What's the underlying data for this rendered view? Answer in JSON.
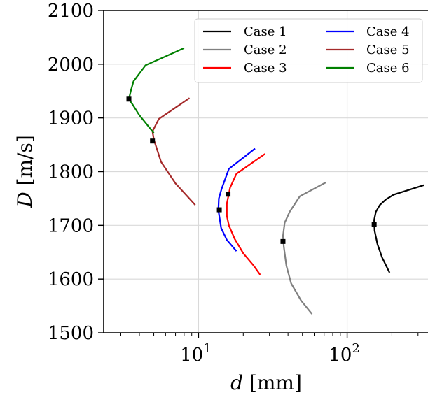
{
  "chart_data": {
    "type": "line",
    "xscale": "log",
    "xlabel_var": "d",
    "xlabel_unit": "[mm]",
    "ylabel_var": "D",
    "ylabel_unit": "[m/s]",
    "xlim": [
      2.3,
      350
    ],
    "ylim": [
      1500,
      2100
    ],
    "x_ticks": [
      {
        "value": 10,
        "base": "10",
        "exp": "1"
      },
      {
        "value": 100,
        "base": "10",
        "exp": "2"
      }
    ],
    "y_ticks": [
      1500,
      1600,
      1700,
      1800,
      1900,
      2000,
      2100
    ],
    "y_tick_labels": [
      "1500",
      "1600",
      "1700",
      "1800",
      "1900",
      "2000",
      "2100"
    ],
    "grid": true,
    "legend_position": "top-right",
    "series": [
      {
        "name": "Case 1",
        "color": "#000000",
        "x": [
          193,
          172,
          160,
          153,
          152,
          156,
          166,
          182,
          205,
          330
        ],
        "y": [
          1612,
          1640,
          1665,
          1690,
          1710,
          1725,
          1738,
          1748,
          1757,
          1775
        ],
        "marker": {
          "x": 152,
          "y": 1702
        }
      },
      {
        "name": "Case 2",
        "color": "#808080",
        "x": [
          58,
          49,
          42,
          39,
          37.5,
          37,
          38,
          41,
          48,
          72
        ],
        "y": [
          1535,
          1560,
          1592,
          1625,
          1660,
          1680,
          1705,
          1725,
          1754,
          1780
        ],
        "marker": {
          "x": 37,
          "y": 1670
        }
      },
      {
        "name": "Case 3",
        "color": "#ff0000",
        "x": [
          26,
          23.5,
          20,
          17.5,
          16,
          15.5,
          15.5,
          16.3,
          18,
          28
        ],
        "y": [
          1608,
          1625,
          1648,
          1675,
          1700,
          1718,
          1740,
          1770,
          1796,
          1833
        ],
        "marker": {
          "x": 15.8,
          "y": 1758
        }
      },
      {
        "name": "Case 4",
        "color": "#0000ff",
        "x": [
          18,
          15.5,
          14.2,
          13.6,
          13.7,
          14.3,
          16,
          24
        ],
        "y": [
          1652,
          1673,
          1695,
          1728,
          1750,
          1768,
          1805,
          1843
        ],
        "marker": {
          "x": 13.8,
          "y": 1729
        }
      },
      {
        "name": "Case 5",
        "color": "#a52a2a",
        "x": [
          9.5,
          7,
          5.6,
          5,
          4.9,
          5.4,
          8.7
        ],
        "y": [
          1738,
          1778,
          1818,
          1860,
          1875,
          1898,
          1937
        ],
        "marker": {
          "x": 4.9,
          "y": 1857
        }
      },
      {
        "name": "Case 6",
        "color": "#008000",
        "x": [
          5,
          4,
          3.6,
          3.4,
          3.5,
          3.65,
          4.4,
          8
        ],
        "y": [
          1872,
          1905,
          1925,
          1935,
          1950,
          1968,
          1998,
          2030
        ],
        "marker": {
          "x": 3.4,
          "y": 1935
        }
      }
    ]
  }
}
